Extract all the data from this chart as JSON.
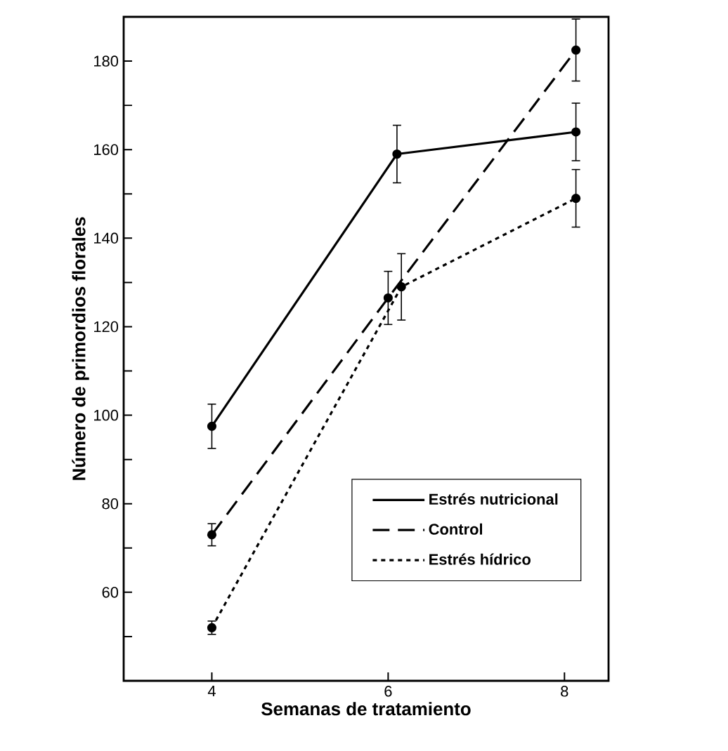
{
  "chart_data": {
    "type": "line",
    "xlabel": "Semanas de tratamiento",
    "ylabel": "Número de primordios florales",
    "xlim": [
      3,
      8.5
    ],
    "ylim": [
      40,
      190
    ],
    "xticks": [
      4,
      6,
      8
    ],
    "yticks": [
      {
        "value": 50,
        "label": null
      },
      60,
      {
        "value": 70,
        "label": null
      },
      80,
      {
        "value": 90,
        "label": null
      },
      100,
      {
        "value": 110,
        "label": null
      },
      120,
      {
        "value": 130,
        "label": null
      },
      140,
      {
        "value": 150,
        "label": null
      },
      160,
      {
        "value": 170,
        "label": null
      },
      180
    ],
    "legend": "bottom right",
    "grid": false,
    "marker": "circle",
    "series": [
      {
        "name": "Estrés nutricional",
        "color": "#000000",
        "line_style": "solid",
        "x": [
          4,
          6.1,
          8.13
        ],
        "values": [
          97.5,
          159,
          164
        ],
        "errors": [
          5,
          6.5,
          6.5
        ]
      },
      {
        "name": "Control",
        "color": "#000000",
        "line_style": "dashed",
        "x": [
          4,
          6,
          8.13
        ],
        "values": [
          73,
          126.5,
          182.5
        ],
        "errors": [
          2.5,
          6,
          7
        ]
      },
      {
        "name": "Estrés hídrico",
        "color": "#000000",
        "line_style": "dotted",
        "x": [
          4,
          6.15,
          8.13
        ],
        "values": [
          52,
          129,
          149
        ],
        "errors": [
          1.5,
          7.5,
          6.5
        ]
      }
    ]
  }
}
